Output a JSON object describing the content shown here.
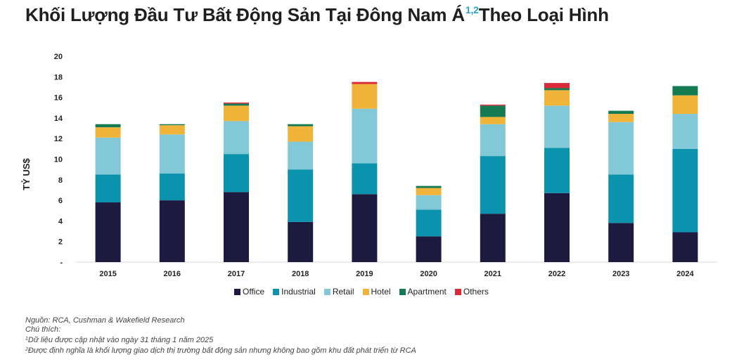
{
  "title": {
    "text": "Khối Lượng Đầu Tư Bất Động Sản Tại Đông Nam Á",
    "superscript": "1,2",
    "suffix": "Theo Loại Hình"
  },
  "chart_data": {
    "type": "bar",
    "stacked": true,
    "categories": [
      "2015",
      "2016",
      "2017",
      "2018",
      "2019",
      "2020",
      "2021",
      "2022",
      "2023",
      "2024"
    ],
    "ylabel": "TỶ US$",
    "xlabel": "",
    "ylim": [
      0,
      20
    ],
    "yticks": [
      0,
      2,
      4,
      6,
      8,
      10,
      12,
      14,
      16,
      18,
      20
    ],
    "ytick_labels": [
      "-",
      "2",
      "4",
      "6",
      "8",
      "10",
      "12",
      "14",
      "16",
      "18",
      "20"
    ],
    "grid": false,
    "legend_position": "bottom",
    "series": [
      {
        "name": "Office",
        "color": "#1d1a40",
        "values": [
          5.8,
          6.0,
          6.8,
          3.9,
          6.6,
          2.5,
          4.7,
          6.7,
          3.8,
          2.9
        ]
      },
      {
        "name": "Industrial",
        "color": "#0b93ad",
        "values": [
          2.7,
          2.6,
          3.7,
          5.1,
          3.0,
          2.6,
          5.6,
          4.4,
          4.7,
          8.1
        ]
      },
      {
        "name": "Retail",
        "color": "#82c8d6",
        "values": [
          3.6,
          3.8,
          3.2,
          2.7,
          5.3,
          1.4,
          3.1,
          4.1,
          5.1,
          3.4
        ]
      },
      {
        "name": "Hotel",
        "color": "#f0b43b",
        "values": [
          1.0,
          0.9,
          1.5,
          1.5,
          2.4,
          0.7,
          0.7,
          1.5,
          0.8,
          1.8
        ]
      },
      {
        "name": "Apartment",
        "color": "#137a52",
        "values": [
          0.3,
          0.1,
          0.2,
          0.2,
          0.0,
          0.2,
          1.1,
          0.2,
          0.3,
          0.9
        ]
      },
      {
        "name": "Others",
        "color": "#d92a3a",
        "values": [
          0.0,
          0.0,
          0.1,
          0.0,
          0.2,
          0.0,
          0.1,
          0.5,
          0.0,
          0.0
        ]
      }
    ]
  },
  "notes": {
    "source": "Nguồn: RCA, Cushman & Wakefield Research",
    "label": "Chú thích:",
    "note1_mark": "1",
    "note1": "Dữ liệu được cập nhật vào ngày 31 tháng 1 năm 2025",
    "note2_mark": "2",
    "note2": "Được định nghĩa là khối lượng giao dịch thị trường bất động sản nhưng không bao gồm khu đất phát triển từ RCA"
  }
}
